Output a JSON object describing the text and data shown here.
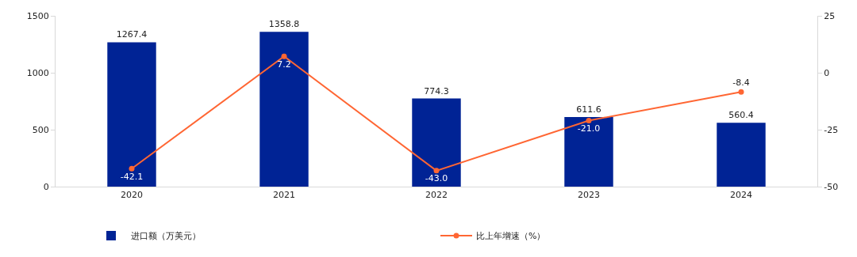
{
  "chart_data": {
    "type": "bar",
    "categories": [
      "2020",
      "2021",
      "2022",
      "2023",
      "2024"
    ],
    "series": [
      {
        "name": "进口额（万美元）",
        "color": "#002395",
        "values": [
          1267.4,
          1358.8,
          774.3,
          611.6,
          560.4
        ],
        "value_labels": [
          "1267.4",
          "1358.8",
          "774.3",
          "611.6",
          "560.4"
        ]
      },
      {
        "name": "比上年增速（%）",
        "type": "line",
        "axis": "y2",
        "color": "#ff6633",
        "values": [
          -42.1,
          7.2,
          -43.0,
          -21.0,
          -8.4
        ],
        "value_labels": [
          "-42.1",
          "7.2",
          "-43.0",
          "-21.0",
          "-8.4"
        ],
        "marker": "circle"
      }
    ],
    "ylim": [
      0,
      1500
    ],
    "yticks": [
      0,
      500,
      1000,
      1500
    ],
    "y2lim": [
      -50,
      25
    ],
    "y2ticks": [
      -50,
      -25,
      0,
      25
    ],
    "grid": false,
    "legend": "bottom"
  }
}
